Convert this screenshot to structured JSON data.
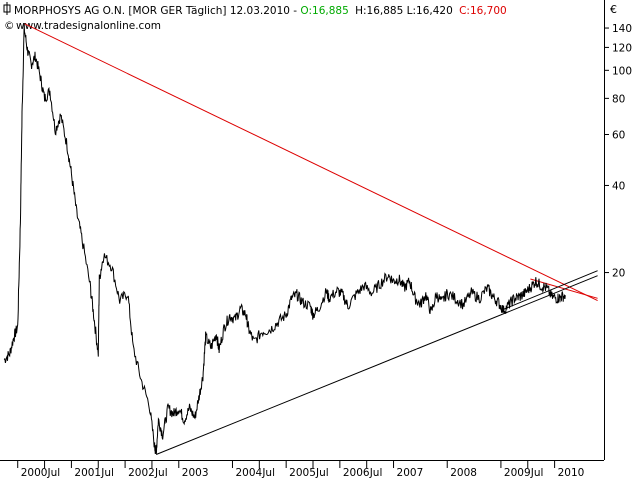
{
  "header": {
    "title": "MORPHOSYS AG O.N. [MOR GER  Täglich] 12.03.2010 -",
    "open_label": "O:16,885",
    "hl_label": "H:16,885 L:16,420",
    "close_label": "C:16,700",
    "source": "www.tradesignalonline.com",
    "currency": "€"
  },
  "colors": {
    "open": "#00aa00",
    "close": "#dd0000",
    "price": "#000000",
    "trend_down": "#dd0000",
    "trend_up": "#000000"
  },
  "chart_data": {
    "type": "line",
    "title": "MORPHOSYS AG O.N.",
    "yscale": "log",
    "ylim": [
      4.5,
      175
    ],
    "xlim": [
      "1999-08",
      "2010-12"
    ],
    "x_ticks": [
      {
        "t": 2000.0,
        "label": "2000"
      },
      {
        "t": 2000.5,
        "label": "Jul"
      },
      {
        "t": 2001.0,
        "label": "2001"
      },
      {
        "t": 2001.5,
        "label": "Jul"
      },
      {
        "t": 2002.0,
        "label": "2002"
      },
      {
        "t": 2002.5,
        "label": "Jul"
      },
      {
        "t": 2003.0,
        "label": "2003"
      },
      {
        "t": 2004.0,
        "label": "2004"
      },
      {
        "t": 2004.5,
        "label": "Jul"
      },
      {
        "t": 2005.0,
        "label": "2005"
      },
      {
        "t": 2005.5,
        "label": "Jul"
      },
      {
        "t": 2006.0,
        "label": "2006"
      },
      {
        "t": 2006.5,
        "label": "Jul"
      },
      {
        "t": 2007.0,
        "label": "2007"
      },
      {
        "t": 2008.0,
        "label": "2008"
      },
      {
        "t": 2009.0,
        "label": "2009"
      },
      {
        "t": 2009.5,
        "label": "Jul"
      },
      {
        "t": 2010.0,
        "label": "2010"
      }
    ],
    "y_ticks": [
      {
        "v": 140,
        "label": "140"
      },
      {
        "v": 120,
        "label": "120"
      },
      {
        "v": 100,
        "label": "100"
      },
      {
        "v": 80,
        "label": "80"
      },
      {
        "v": 60,
        "label": "60"
      },
      {
        "v": 40,
        "label": "40"
      },
      {
        "v": 20,
        "label": "20"
      }
    ],
    "series": [
      {
        "values": [
          [
            1999.75,
            10.0
          ],
          [
            1999.85,
            10.5
          ],
          [
            1999.93,
            12.0
          ],
          [
            2000.0,
            13.0
          ],
          [
            2000.05,
            30.0
          ],
          [
            2000.08,
            70.0
          ],
          [
            2000.12,
            140.0
          ],
          [
            2000.18,
            118.0
          ],
          [
            2000.25,
            105.0
          ],
          [
            2000.33,
            112.0
          ],
          [
            2000.42,
            95.0
          ],
          [
            2000.5,
            80.0
          ],
          [
            2000.6,
            85.0
          ],
          [
            2000.7,
            62.0
          ],
          [
            2000.8,
            70.0
          ],
          [
            2000.92,
            55.0
          ],
          [
            2001.0,
            44.0
          ],
          [
            2001.1,
            32.0
          ],
          [
            2001.2,
            26.0
          ],
          [
            2001.35,
            18.0
          ],
          [
            2001.42,
            14.0
          ],
          [
            2001.5,
            10.5
          ],
          [
            2001.52,
            19.0
          ],
          [
            2001.6,
            23.0
          ],
          [
            2001.75,
            21.0
          ],
          [
            2001.9,
            16.0
          ],
          [
            2002.05,
            17.0
          ],
          [
            2002.15,
            11.0
          ],
          [
            2002.3,
            8.5
          ],
          [
            2002.45,
            7.0
          ],
          [
            2002.55,
            5.0
          ],
          [
            2002.58,
            4.8
          ],
          [
            2002.62,
            6.2
          ],
          [
            2002.7,
            5.5
          ],
          [
            2002.8,
            6.8
          ],
          [
            2002.9,
            6.5
          ],
          [
            2003.0,
            6.8
          ],
          [
            2003.1,
            6.2
          ],
          [
            2003.2,
            6.8
          ],
          [
            2003.3,
            6.3
          ],
          [
            2003.38,
            7.5
          ],
          [
            2003.45,
            8.8
          ],
          [
            2003.5,
            12.0
          ],
          [
            2003.6,
            11.0
          ],
          [
            2003.7,
            12.3
          ],
          [
            2003.75,
            10.8
          ],
          [
            2003.85,
            13.0
          ],
          [
            2003.95,
            14.2
          ],
          [
            2004.05,
            13.8
          ],
          [
            2004.15,
            15.0
          ],
          [
            2004.25,
            14.3
          ],
          [
            2004.3,
            12.8
          ],
          [
            2004.4,
            11.5
          ],
          [
            2004.55,
            12.5
          ],
          [
            2004.7,
            12.7
          ],
          [
            2004.85,
            13.5
          ],
          [
            2005.0,
            14.3
          ],
          [
            2005.1,
            16.3
          ],
          [
            2005.2,
            16.8
          ],
          [
            2005.3,
            15.8
          ],
          [
            2005.45,
            15.3
          ],
          [
            2005.5,
            14.3
          ],
          [
            2005.6,
            15.0
          ],
          [
            2005.75,
            17.2
          ],
          [
            2005.8,
            16.3
          ],
          [
            2005.95,
            17.3
          ],
          [
            2006.05,
            16.8
          ],
          [
            2006.15,
            15.3
          ],
          [
            2006.3,
            16.8
          ],
          [
            2006.45,
            18.0
          ],
          [
            2006.6,
            17.0
          ],
          [
            2006.75,
            18.3
          ],
          [
            2006.9,
            19.6
          ],
          [
            2007.0,
            18.7
          ],
          [
            2007.1,
            19.0
          ],
          [
            2007.2,
            17.7
          ],
          [
            2007.3,
            18.7
          ],
          [
            2007.4,
            16.3
          ],
          [
            2007.5,
            15.5
          ],
          [
            2007.6,
            16.8
          ],
          [
            2007.7,
            14.5
          ],
          [
            2007.8,
            16.8
          ],
          [
            2007.9,
            15.8
          ],
          [
            2008.0,
            17.0
          ],
          [
            2008.15,
            16.3
          ],
          [
            2008.3,
            15.5
          ],
          [
            2008.45,
            17.0
          ],
          [
            2008.6,
            16.3
          ],
          [
            2008.75,
            17.7
          ],
          [
            2008.85,
            16.5
          ],
          [
            2008.95,
            15.8
          ],
          [
            2009.05,
            14.8
          ],
          [
            2009.15,
            15.5
          ],
          [
            2009.25,
            16.3
          ],
          [
            2009.35,
            16.5
          ],
          [
            2009.45,
            17.0
          ],
          [
            2009.55,
            17.8
          ],
          [
            2009.65,
            18.7
          ],
          [
            2009.75,
            18.0
          ],
          [
            2009.85,
            17.7
          ],
          [
            2009.95,
            16.5
          ],
          [
            2010.05,
            16.3
          ],
          [
            2010.12,
            16.5
          ],
          [
            2010.2,
            16.7
          ]
        ]
      }
    ],
    "trendlines": [
      {
        "color": "red",
        "from": [
          2000.12,
          145.0
        ],
        "to": [
          2010.8,
          16.0
        ]
      },
      {
        "color": "red",
        "from": [
          2009.55,
          19.0
        ],
        "to": [
          2010.8,
          16.3
        ]
      },
      {
        "color": "black",
        "from": [
          2002.58,
          4.7
        ],
        "to": [
          2010.8,
          19.5
        ]
      },
      {
        "color": "black",
        "from": [
          2009.0,
          14.8
        ],
        "to": [
          2010.8,
          20.3
        ]
      }
    ]
  }
}
